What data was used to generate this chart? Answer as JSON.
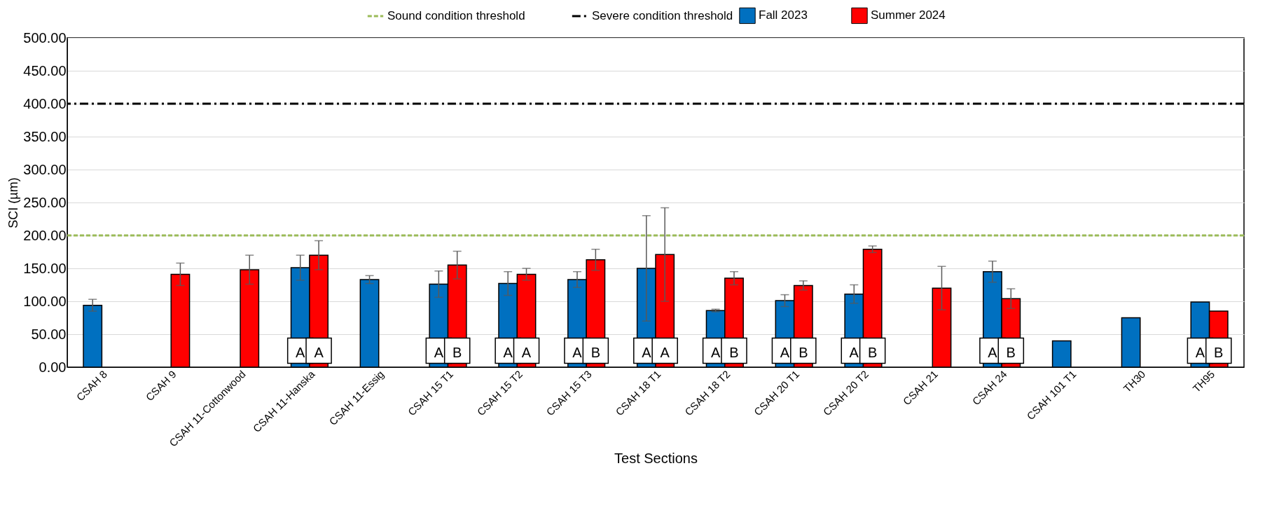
{
  "chart_data": {
    "type": "bar",
    "xlabel": "Test Sections",
    "ylabel": "SCI (µm)",
    "categories": [
      "CSAH 8",
      "CSAH 9",
      "CSAH 11-Cottonwood",
      "CSAH 11-Hanska",
      "CSAH 11-Essig",
      "CSAH 15 T1",
      "CSAH 15 T2",
      "CSAH 15 T3",
      "CSAH 18 T1",
      "CSAH 18 T2",
      "CSAH 20 T1",
      "CSAH 20 T2",
      "CSAH 21",
      "CSAH 24",
      "CSAH 101 T1",
      "TH30",
      "TH95"
    ],
    "series": [
      {
        "name": "Fall 2023",
        "color": "#0070c0",
        "values": [
          94,
          null,
          null,
          151,
          133,
          126,
          127,
          133,
          150,
          86,
          101,
          111,
          null,
          145,
          40,
          75,
          99
        ],
        "errors": [
          9,
          null,
          null,
          19,
          6,
          20,
          18,
          12,
          80,
          2,
          9,
          14,
          null,
          16,
          null,
          null,
          null
        ]
      },
      {
        "name": "Summer 2024",
        "color": "#ff0000",
        "values": [
          null,
          141,
          148,
          170,
          null,
          155,
          141,
          163,
          171,
          135,
          124,
          179,
          120,
          104,
          null,
          null,
          85
        ],
        "errors": [
          null,
          17,
          22,
          22,
          null,
          21,
          9,
          16,
          71,
          10,
          7,
          5,
          33,
          15,
          null,
          null,
          null
        ]
      }
    ],
    "ylim": [
      0,
      500
    ],
    "yticks": [
      {
        "value": 0,
        "label": "0.00"
      },
      {
        "value": 50,
        "label": "50.00"
      },
      {
        "value": 100,
        "label": "100.00"
      },
      {
        "value": 150,
        "label": "150.00"
      },
      {
        "value": 200,
        "label": "200.00"
      },
      {
        "value": 250,
        "label": "250.00"
      },
      {
        "value": 300,
        "label": "300.00"
      },
      {
        "value": 350,
        "label": "350.00"
      },
      {
        "value": 400,
        "label": "400.00"
      },
      {
        "value": 450,
        "label": "450.00"
      },
      {
        "value": 500,
        "label": "500.00"
      }
    ],
    "ref_lines": [
      {
        "axis": "y",
        "value": 200,
        "label": "Sound condition threshold",
        "color": "#9bbb59",
        "line_style": "dashed"
      },
      {
        "axis": "y",
        "value": 400,
        "label": "Severe condition threshold",
        "color": "#000000",
        "line_style": "dashdot"
      }
    ],
    "annotations": [
      {
        "text": "A",
        "x": "CSAH 11-Hanska",
        "y": 25
      },
      {
        "text": "A",
        "x": "CSAH 11-Hanska",
        "y": 25
      },
      {
        "text": "A",
        "x": "CSAH 15 T1",
        "y": 25
      },
      {
        "text": "B",
        "x": "CSAH 15 T1",
        "y": 25
      },
      {
        "text": "A",
        "x": "CSAH 15 T2",
        "y": 25
      },
      {
        "text": "A",
        "x": "CSAH 15 T2",
        "y": 25
      },
      {
        "text": "A",
        "x": "CSAH 15 T3",
        "y": 25
      },
      {
        "text": "B",
        "x": "CSAH 15 T3",
        "y": 25
      },
      {
        "text": "A",
        "x": "CSAH 18 T1",
        "y": 25
      },
      {
        "text": "A",
        "x": "CSAH 18 T1",
        "y": 25
      },
      {
        "text": "A",
        "x": "CSAH 18 T2",
        "y": 25
      },
      {
        "text": "B",
        "x": "CSAH 18 T2",
        "y": 25
      },
      {
        "text": "A",
        "x": "CSAH 20 T1",
        "y": 25
      },
      {
        "text": "B",
        "x": "CSAH 20 T1",
        "y": 25
      },
      {
        "text": "A",
        "x": "CSAH 20 T2",
        "y": 25
      },
      {
        "text": "B",
        "x": "CSAH 20 T2",
        "y": 25
      },
      {
        "text": "A",
        "x": "CSAH 24",
        "y": 25
      },
      {
        "text": "B",
        "x": "CSAH 24",
        "y": 25
      },
      {
        "text": "A",
        "x": "TH95",
        "y": 25
      },
      {
        "text": "B",
        "x": "TH95",
        "y": 25
      }
    ],
    "grid": "y",
    "legend": "top"
  }
}
